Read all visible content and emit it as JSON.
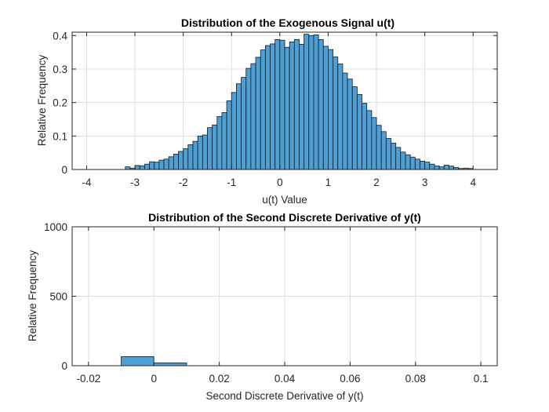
{
  "chart_data": [
    {
      "type": "bar",
      "title": "Distribution of the Exogenous Signal u(t)",
      "xlabel": "u(t) Value",
      "ylabel": "Relative Frequency",
      "xlim": [
        -4.3,
        4.5
      ],
      "ylim": [
        0,
        0.41
      ],
      "xticks": [
        -4,
        -3,
        -2,
        -1,
        0,
        1,
        2,
        3,
        4
      ],
      "yticks": [
        0,
        0.1,
        0.2,
        0.3,
        0.4
      ],
      "ytick_labels": [
        "0",
        "0.1",
        "0.2",
        "0.3",
        "0.4"
      ],
      "grid": true,
      "bin_width": 0.1,
      "bin_start": -3.2,
      "values": [
        0.008,
        0.004,
        0.012,
        0.011,
        0.016,
        0.023,
        0.022,
        0.028,
        0.031,
        0.038,
        0.046,
        0.054,
        0.062,
        0.074,
        0.084,
        0.1,
        0.103,
        0.125,
        0.133,
        0.158,
        0.17,
        0.205,
        0.23,
        0.256,
        0.275,
        0.302,
        0.316,
        0.335,
        0.357,
        0.37,
        0.375,
        0.388,
        0.386,
        0.365,
        0.381,
        0.388,
        0.374,
        0.404,
        0.4,
        0.402,
        0.388,
        0.368,
        0.358,
        0.336,
        0.315,
        0.288,
        0.27,
        0.247,
        0.224,
        0.198,
        0.176,
        0.155,
        0.132,
        0.113,
        0.093,
        0.079,
        0.066,
        0.052,
        0.044,
        0.037,
        0.031,
        0.025,
        0.022,
        0.016,
        0.011,
        0.008,
        0.013,
        0.01,
        0.006,
        0.003,
        0.004,
        0.003
      ]
    },
    {
      "type": "bar",
      "title": "Distribution of the Second Discrete Derivative of y(t)",
      "xlabel": "Second Discrete Derivative of y(t)",
      "ylabel": "Relative Frequency",
      "xlim": [
        -0.025,
        0.105
      ],
      "ylim": [
        0,
        1000
      ],
      "xticks": [
        -0.02,
        0,
        0.02,
        0.04,
        0.06,
        0.08,
        0.1
      ],
      "xtick_labels": [
        "-0.02",
        "0",
        "0.02",
        "0.04",
        "0.06",
        "0.08",
        "0.1"
      ],
      "yticks": [
        0,
        500,
        1000
      ],
      "grid": true,
      "bin_width": 0.01,
      "bin_start": -0.01,
      "values": [
        65,
        20
      ]
    }
  ]
}
